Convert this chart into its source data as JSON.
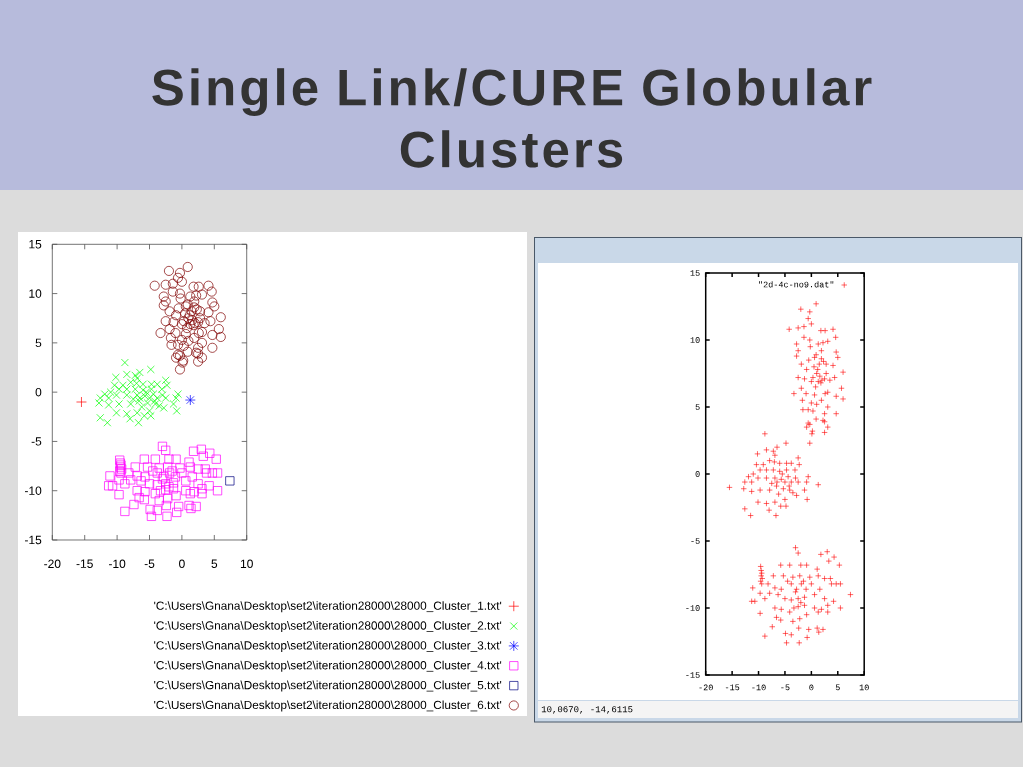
{
  "chart_data": [
    {
      "type": "scatter",
      "title": "Single Link/CURE Globular Clusters",
      "xlim": [
        -20,
        10
      ],
      "ylim": [
        -15,
        15
      ],
      "xticks": [
        -20,
        -15,
        -10,
        -5,
        0,
        5,
        10
      ],
      "yticks": [
        -15,
        -10,
        -5,
        0,
        5,
        10,
        15
      ],
      "legend": "bottom",
      "series": [
        {
          "name": "'C:\\Users\\Gnana\\Desktop\\set2\\iteration28000\\28000_Cluster_1.txt'",
          "color": "#ff0000",
          "marker": "cross",
          "x": [
            -15.5
          ],
          "values": [
            -1.0
          ]
        },
        {
          "name": "'C:\\Users\\Gnana\\Desktop\\set2\\iteration28000\\28000_Cluster_2.txt'",
          "color": "#00ff00",
          "marker": "cross",
          "x": [
            -8.8,
            -4.8,
            -10.2,
            -8.5,
            -7.2,
            -6.5,
            -6.9,
            -7.9,
            -2.5,
            -2.3,
            -10.4,
            -9.1,
            -6.0,
            -4.7,
            -3.8,
            -11.9,
            -11.0,
            -9.7,
            -8.5,
            -7.2,
            -6.0,
            -4.7,
            -3.1,
            -12.6,
            -11.3,
            -10.1,
            -8.5,
            -6.9,
            -5.7,
            -4.4,
            -3.0,
            -0.6,
            -0.9,
            -2.5,
            -3.8,
            -12.8,
            -11.3,
            -9.7,
            -7.9,
            -6.6,
            -5.3,
            -4.1,
            -3.5,
            -2.8,
            -1.3,
            -0.8,
            -10.1,
            -8.5,
            -6.9,
            -5.0,
            -4.8,
            -12.6,
            -8.0,
            -11.5,
            -6.7,
            -6.5,
            -5.5,
            -7.5,
            -5.0,
            -6.2,
            -4.2,
            -7.0,
            -5.8
          ],
          "values": [
            3.0,
            2.3,
            1.5,
            1.8,
            1.7,
            2.0,
            1.4,
            1.0,
            1.2,
            0.7,
            0.7,
            0.7,
            0.8,
            0.8,
            0.8,
            -0.2,
            0.0,
            0.3,
            0.3,
            0.3,
            0.2,
            0.3,
            0.3,
            -0.6,
            -0.6,
            -0.3,
            -0.3,
            -0.3,
            -0.4,
            -0.2,
            -0.3,
            -0.2,
            -0.6,
            -0.6,
            -0.6,
            -1.1,
            -1.3,
            -1.2,
            -1.2,
            -0.9,
            -1.1,
            -1.2,
            -1.4,
            -1.6,
            -1.2,
            -1.9,
            -2.1,
            -2.2,
            -2.1,
            -1.9,
            -2.4,
            -2.6,
            -2.7,
            -3.1,
            -3.1,
            -0.6,
            0.0,
            -0.7,
            -0.6,
            -1.5,
            -0.9,
            0.9,
            -2.4
          ]
        },
        {
          "name": "'C:\\Users\\Gnana\\Desktop\\set2\\iteration28000\\28000_Cluster_3.txt'",
          "color": "#0000ff",
          "marker": "cross",
          "x": [
            1.3
          ],
          "values": [
            -0.8
          ]
        },
        {
          "name": "'C:\\Users\\Gnana\\Desktop\\set2\\iteration28000\\28000_Cluster_4.txt'",
          "color": "#ff00ff",
          "marker": "square",
          "x": [
            -3.0,
            -2.5,
            1.8,
            3.0,
            4.3,
            3.3,
            5.3,
            -5.8,
            -4.1,
            -2.0,
            -0.9,
            1.1,
            -9.6,
            -9.5,
            -9.4,
            -9.5,
            -9.3,
            -9.6,
            -7.2,
            -5.3,
            -3.5,
            -2.2,
            -0.3,
            1.3,
            2.5,
            3.6,
            -11.1,
            -9.4,
            -8.2,
            -6.9,
            -5.7,
            -3.8,
            -2.8,
            -1.9,
            0.0,
            1.6,
            3.8,
            4.7,
            5.5,
            -11.3,
            -10.7,
            -9.7,
            -7.9,
            -6.3,
            -5.0,
            -3.8,
            -2.5,
            -1.3,
            0.6,
            2.5,
            4.2,
            -8.8,
            -6.9,
            -5.7,
            -4.1,
            -2.5,
            -1.3,
            0.6,
            1.9,
            3.1,
            5.5,
            -9.7,
            -6.6,
            -5.8,
            -3.5,
            -2.2,
            -0.9,
            1.3,
            3.1,
            -7.4,
            -2.4,
            -0.5,
            1.1,
            2.2,
            1.4,
            -8.8,
            -4.9,
            -3.8,
            -0.8,
            -4.7,
            -2.3,
            -3.0,
            -2.0,
            -1.0,
            -4.5,
            -3.3,
            -1.5
          ],
          "values": [
            -5.5,
            -5.9,
            -6.0,
            -5.8,
            -6.2,
            -6.5,
            -6.8,
            -6.8,
            -6.8,
            -6.8,
            -6.8,
            -7.1,
            -6.9,
            -7.2,
            -7.4,
            -7.6,
            -7.8,
            -8.0,
            -7.6,
            -7.6,
            -7.7,
            -7.6,
            -7.7,
            -7.6,
            -7.8,
            -7.8,
            -8.5,
            -8.2,
            -8.2,
            -8.5,
            -8.6,
            -8.2,
            -8.6,
            -8.2,
            -8.2,
            -8.6,
            -8.2,
            -8.2,
            -8.2,
            -9.5,
            -9.5,
            -8.9,
            -8.9,
            -9.0,
            -9.3,
            -9.4,
            -9.3,
            -9.2,
            -9.0,
            -9.3,
            -9.5,
            -9.3,
            -10.0,
            -10.1,
            -10.3,
            -9.9,
            -9.8,
            -10.0,
            -10.1,
            -9.8,
            -10.0,
            -10.4,
            -10.7,
            -10.9,
            -11.0,
            -10.8,
            -10.5,
            -10.3,
            -10.3,
            -11.4,
            -11.5,
            -11.6,
            -11.5,
            -11.6,
            -11.8,
            -12.1,
            -11.9,
            -12.0,
            -12.2,
            -12.6,
            -12.6,
            -8.8,
            -9.6,
            -8.6,
            -8.0,
            -10.0,
            -8.0
          ]
        },
        {
          "name": "'C:\\Users\\Gnana\\Desktop\\set2\\iteration28000\\28000_Cluster_5.txt'",
          "color": "#000080",
          "marker": "square",
          "x": [
            7.4
          ],
          "values": [
            -9.0
          ]
        },
        {
          "name": "'C:\\Users\\Gnana\\Desktop\\set2\\iteration28000\\28000_Cluster_6.txt'",
          "color": "#800000",
          "marker": "circle",
          "x": [
            0.9,
            -2.0,
            -0.3,
            -0.6,
            0.0,
            -1.4,
            -2.5,
            -4.2,
            1.8,
            2.6,
            4.1,
            4.6,
            -2.8,
            -1.4,
            -0.3,
            1.3,
            3.1,
            -2.5,
            -2.8,
            4.7,
            5.0,
            -1.9,
            -0.9,
            0.6,
            1.9,
            2.8,
            4.1,
            6.0,
            -2.5,
            -1.3,
            0.0,
            1.3,
            2.5,
            4.4,
            5.7,
            -3.3,
            -1.9,
            0.6,
            3.1,
            4.7,
            6.0,
            -1.7,
            -0.6,
            -1.6,
            0.3,
            2.5,
            3.1,
            4.7,
            0.9,
            2.2,
            -0.3,
            -0.9,
            3.1,
            0.2,
            2.5,
            -0.6,
            0.1,
            -0.3,
            2.5,
            0.5,
            1.0,
            1.5,
            2.0,
            0.8,
            1.8,
            1.2,
            2.3,
            0.3,
            1.6,
            2.8,
            0.9,
            1.9,
            -0.5,
            2.6,
            -1.0,
            1.0,
            1.9,
            0.0,
            3.5,
            -0.2,
            2.2
          ],
          "values": [
            12.7,
            12.3,
            12.1,
            11.6,
            11.2,
            11.0,
            10.9,
            10.8,
            10.7,
            10.7,
            10.8,
            10.2,
            9.7,
            10.2,
            10.0,
            9.7,
            9.9,
            9.2,
            8.8,
            9.1,
            8.7,
            8.2,
            7.8,
            8.7,
            8.6,
            8.2,
            8.1,
            7.6,
            7.2,
            7.1,
            6.9,
            6.9,
            7.1,
            7.2,
            6.4,
            6.0,
            6.4,
            5.9,
            6.1,
            5.8,
            5.6,
            5.5,
            4.8,
            4.8,
            4.7,
            4.5,
            5.0,
            4.5,
            4.1,
            4.0,
            3.7,
            3.5,
            3.5,
            3.2,
            3.1,
            3.8,
            3.0,
            2.3,
            3.9,
            8.0,
            7.5,
            8.2,
            7.0,
            6.5,
            6.8,
            7.8,
            8.4,
            7.2,
            7.3,
            7.5,
            8.9,
            9.2,
            8.5,
            6.0,
            6.0,
            5.2,
            5.5,
            5.3,
            7.0,
            9.5,
            9.8
          ]
        }
      ]
    },
    {
      "type": "scatter",
      "xlim": [
        -20,
        10
      ],
      "ylim": [
        -15,
        15
      ],
      "xticks": [
        -20,
        -15,
        -10,
        -5,
        0,
        5,
        10
      ],
      "yticks": [
        -15,
        -10,
        -5,
        0,
        5,
        10,
        15
      ],
      "legend": "top right",
      "annotations": [
        "10,0670, -14,6115"
      ],
      "series": [
        {
          "name": "\"2d-4c-no9.dat\"",
          "color": "#ff0000",
          "marker": "cross",
          "x": [
            -15.5,
            -8.8,
            -4.8,
            -10.2,
            -8.5,
            -7.2,
            -6.5,
            -6.9,
            -7.9,
            -2.5,
            -2.3,
            -10.4,
            -9.1,
            -6.0,
            -4.7,
            -3.8,
            -11.9,
            -11.0,
            -9.7,
            -8.5,
            -7.2,
            -6.0,
            -4.7,
            -3.1,
            -12.6,
            -11.3,
            -10.1,
            -8.5,
            -6.9,
            -5.7,
            -4.4,
            -3.0,
            -0.6,
            -0.9,
            -2.5,
            -3.8,
            -12.8,
            -11.3,
            -9.7,
            -7.9,
            -6.6,
            -5.3,
            -4.1,
            -3.5,
            -2.8,
            -1.3,
            -0.8,
            -10.1,
            -8.5,
            -6.9,
            -5.0,
            -4.8,
            -12.6,
            -8.0,
            -11.5,
            -6.7,
            -6.5,
            -5.5,
            -7.5,
            -5.0,
            -6.2,
            -4.2,
            -7.0,
            -5.8,
            1.3,
            -3.0,
            -2.5,
            1.8,
            3.0,
            4.3,
            3.3,
            5.3,
            -5.8,
            -4.1,
            -2.0,
            -0.9,
            1.1,
            -9.6,
            -9.5,
            -9.4,
            -9.5,
            -9.3,
            -9.6,
            -7.2,
            -5.3,
            -3.5,
            -2.2,
            -0.3,
            1.3,
            2.5,
            3.6,
            -11.1,
            -9.4,
            -8.2,
            -6.9,
            -5.7,
            -3.8,
            -2.8,
            -1.9,
            0.0,
            1.6,
            3.8,
            4.7,
            5.5,
            -11.3,
            -10.7,
            -9.7,
            -7.9,
            -6.3,
            -5.0,
            -3.8,
            -2.5,
            -1.3,
            0.6,
            2.5,
            4.2,
            -8.8,
            -6.9,
            -5.7,
            -4.1,
            -2.5,
            -1.3,
            0.6,
            1.9,
            3.1,
            5.5,
            -9.7,
            -6.6,
            -5.8,
            -3.5,
            -2.2,
            -0.9,
            1.3,
            3.1,
            -7.4,
            -2.4,
            -0.5,
            1.1,
            2.2,
            1.4,
            -8.8,
            -4.9,
            -3.8,
            -0.8,
            -4.7,
            -2.3,
            -3.0,
            -2.0,
            -1.0,
            -4.5,
            -3.3,
            -1.5,
            7.4,
            0.9,
            -2.0,
            -0.3,
            -0.6,
            0.0,
            -1.4,
            -2.5,
            -4.2,
            1.8,
            2.6,
            4.1,
            4.6,
            -2.8,
            -1.4,
            -0.3,
            1.3,
            3.1,
            -2.5,
            -2.8,
            4.7,
            5.0,
            -1.9,
            -0.9,
            0.6,
            1.9,
            2.8,
            4.1,
            6.0,
            -2.5,
            -1.3,
            0.0,
            1.3,
            2.5,
            4.4,
            5.7,
            -3.3,
            -1.9,
            0.6,
            3.1,
            4.7,
            6.0,
            -1.7,
            -0.6,
            -1.6,
            0.3,
            2.5,
            3.1,
            4.7,
            0.9,
            2.2,
            -0.3,
            -0.9,
            3.1,
            0.2,
            2.5,
            -0.6,
            0.1,
            -0.3,
            2.5,
            0.5,
            1.0,
            1.5,
            2.0,
            0.8,
            1.8,
            1.2,
            2.3,
            0.3,
            1.6,
            2.8,
            0.9,
            1.9,
            -0.5,
            2.6,
            -1.0,
            1.0,
            1.9,
            0.0,
            3.5,
            -0.2,
            2.2
          ],
          "values": [
            -1.0,
            3.0,
            2.3,
            1.5,
            1.8,
            1.7,
            2.0,
            1.4,
            1.0,
            1.2,
            0.7,
            0.7,
            0.7,
            0.8,
            0.8,
            0.8,
            -0.2,
            0.0,
            0.3,
            0.3,
            0.3,
            0.2,
            0.3,
            0.3,
            -0.6,
            -0.6,
            -0.3,
            -0.3,
            -0.3,
            -0.4,
            -0.2,
            -0.3,
            -0.2,
            -0.6,
            -0.6,
            -0.6,
            -1.1,
            -1.3,
            -1.2,
            -1.2,
            -0.9,
            -1.1,
            -1.2,
            -1.4,
            -1.6,
            -1.2,
            -1.9,
            -2.1,
            -2.2,
            -2.1,
            -1.9,
            -2.4,
            -2.6,
            -2.7,
            -3.1,
            -3.1,
            -0.6,
            0.0,
            -0.7,
            -0.6,
            -1.5,
            -0.9,
            0.9,
            -2.4,
            -0.8,
            -5.5,
            -5.9,
            -6.0,
            -5.8,
            -6.2,
            -6.5,
            -6.8,
            -6.8,
            -6.8,
            -6.8,
            -6.8,
            -7.1,
            -6.9,
            -7.2,
            -7.4,
            -7.6,
            -7.8,
            -8.0,
            -7.6,
            -7.6,
            -7.7,
            -7.6,
            -7.7,
            -7.6,
            -7.8,
            -7.8,
            -8.5,
            -8.2,
            -8.2,
            -8.5,
            -8.6,
            -8.2,
            -8.6,
            -8.2,
            -8.2,
            -8.6,
            -8.2,
            -8.2,
            -8.2,
            -9.5,
            -9.5,
            -8.9,
            -8.9,
            -9.0,
            -9.3,
            -9.4,
            -9.3,
            -9.2,
            -9.0,
            -9.3,
            -9.5,
            -9.3,
            -10.0,
            -10.1,
            -10.3,
            -9.9,
            -9.8,
            -10.0,
            -10.1,
            -9.8,
            -10.0,
            -10.4,
            -10.7,
            -10.9,
            -11.0,
            -10.8,
            -10.5,
            -10.3,
            -10.3,
            -11.4,
            -11.5,
            -11.6,
            -11.5,
            -11.6,
            -11.8,
            -12.1,
            -11.9,
            -12.0,
            -12.2,
            -12.6,
            -12.6,
            -8.8,
            -9.6,
            -8.6,
            -8.0,
            -10.0,
            -8.0,
            -9.0,
            12.7,
            12.3,
            12.1,
            11.6,
            11.2,
            11.0,
            10.9,
            10.8,
            10.7,
            10.7,
            10.8,
            10.2,
            9.7,
            10.2,
            10.0,
            9.7,
            9.9,
            9.2,
            8.8,
            9.1,
            8.7,
            8.2,
            7.8,
            8.7,
            8.6,
            8.2,
            8.1,
            7.6,
            7.2,
            7.1,
            6.9,
            6.9,
            7.1,
            7.2,
            6.4,
            6.0,
            6.4,
            5.9,
            6.1,
            5.8,
            5.6,
            5.5,
            4.8,
            4.8,
            4.7,
            4.5,
            5.0,
            4.5,
            4.1,
            4.0,
            3.7,
            3.5,
            3.5,
            3.2,
            3.1,
            3.8,
            3.0,
            2.3,
            3.9,
            8.0,
            7.5,
            8.2,
            7.0,
            6.5,
            6.8,
            7.8,
            8.4,
            7.2,
            7.3,
            7.5,
            8.9,
            9.2,
            8.5,
            6.0,
            6.0,
            5.2,
            5.5,
            5.3,
            7.0,
            9.5,
            9.8
          ]
        }
      ]
    }
  ]
}
